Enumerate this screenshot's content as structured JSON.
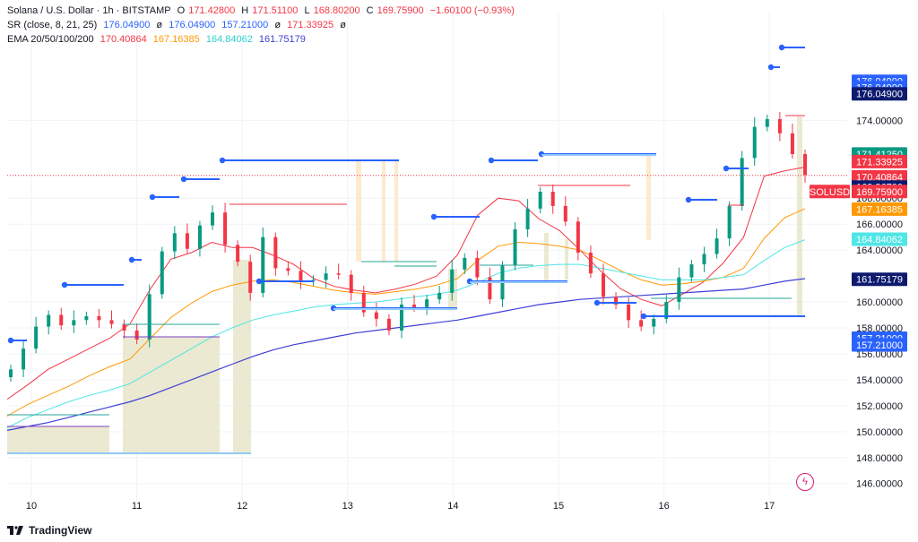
{
  "legend": {
    "symbol": "Solana / U.S. Dollar · 1h · BITSTAMP",
    "o_label": "O",
    "o": "171.42800",
    "h_label": "H",
    "h": "171.51100",
    "l_label": "L",
    "l": "168.80200",
    "c_label": "C",
    "c": "169.75900",
    "change": "−1.60100 (−0.93%)",
    "sr_label": "SR (close, 8, 21, 25)",
    "sr_values": [
      "176.04900",
      "ø",
      "176.04900",
      "157.21000",
      "ø",
      "171.33925",
      "ø"
    ],
    "ema_label": "EMA 20/50/100/200",
    "ema_values": [
      "170.40864",
      "167.16385",
      "164.84062",
      "161.75179"
    ]
  },
  "footer": {
    "brand": "TradingView"
  },
  "colors": {
    "up": "#089981",
    "down": "#f23645",
    "ema20": "#f23645",
    "ema50": "#ff9800",
    "ema100": "#4ee6e6",
    "ema200": "#3f3fd6",
    "sr_blue": "#2962ff",
    "sr_light": "#90caf9"
  },
  "chart_data": {
    "type": "line",
    "title": "Solana / U.S. Dollar · 1h · BITSTAMP",
    "x_ticks": [
      "10",
      "11",
      "12",
      "13",
      "14",
      "15",
      "16",
      "17"
    ],
    "y_ticks": [
      "146.00000",
      "148.00000",
      "150.00000",
      "152.00000",
      "154.00000",
      "156.00000",
      "158.00000",
      "160.00000",
      "164.00000",
      "166.00000",
      "168.00000",
      "174.00000"
    ],
    "ylim": [
      144.6,
      179.0
    ],
    "current_price_label": "SOLUSD",
    "price_tags": [
      {
        "value": "176.04900",
        "price": 176.049,
        "color": "#2962ff",
        "offset": -28
      },
      {
        "value": "176.04900",
        "price": 176.049,
        "color": "#2962ff",
        "offset": -14
      },
      {
        "value": "176.04900",
        "price": 176.049,
        "color": "#0d1a6e",
        "offset": 0
      },
      {
        "value": "171.41250",
        "price": 171.4125,
        "color": "#089981",
        "offset": 0
      },
      {
        "value": "171.33925",
        "price": 171.33925,
        "color": "#f23645",
        "offset": 15
      },
      {
        "value": "170.40864",
        "price": 170.40864,
        "color": "#f23645",
        "offset": 22
      },
      {
        "value": "169.86700",
        "price": 169.867,
        "color": "#0d1a6e",
        "offset": 29
      },
      {
        "value": "169.75900",
        "price": 169.759,
        "color": "#f23645",
        "offset": 36
      },
      {
        "value": "167.16385",
        "price": 167.16385,
        "color": "#ff9800",
        "offset": 0
      },
      {
        "value": "164.84062",
        "price": 164.84062,
        "color": "#4ee6e6",
        "offset": 0
      },
      {
        "value": "161.75179",
        "price": 161.75179,
        "color": "#0d1a6e",
        "offset": 0
      },
      {
        "value": "157.21000",
        "price": 157.21,
        "color": "#2962ff",
        "offset": 0
      },
      {
        "value": "157.21000",
        "price": 157.21,
        "color": "#2962ff",
        "offset": 15
      }
    ],
    "series": [
      {
        "name": "EMA 20",
        "color": "#f23645",
        "values": [
          152.5,
          153.6,
          154.8,
          155.6,
          156.4,
          157.2,
          158.3,
          161.0,
          163.3,
          163.8,
          164.6,
          164.2,
          164.2,
          163.6,
          162.9,
          161.8,
          161.2,
          160.9,
          160.7,
          161.0,
          161.4,
          162.0,
          163.6,
          166.7,
          168.0,
          167.8,
          166.4,
          165.5,
          164.0,
          162.4,
          161.0,
          160.2,
          159.7,
          160.6,
          161.5,
          163.0,
          165.0,
          169.7,
          170.1,
          170.4
        ]
      },
      {
        "name": "EMA 50",
        "color": "#ff9800",
        "values": [
          151.2,
          152.1,
          152.8,
          153.5,
          154.3,
          155.0,
          155.6,
          157.2,
          158.8,
          159.9,
          160.8,
          161.3,
          161.6,
          161.7,
          161.5,
          161.2,
          160.9,
          160.7,
          160.6,
          160.8,
          161.0,
          161.3,
          161.8,
          163.2,
          164.3,
          164.6,
          164.5,
          164.3,
          164.0,
          163.2,
          162.4,
          161.7,
          161.3,
          161.4,
          161.6,
          161.9,
          162.6,
          164.9,
          166.5,
          167.2
        ]
      },
      {
        "name": "EMA 100",
        "color": "#4ee6e6",
        "values": [
          150.3,
          151.1,
          151.7,
          152.3,
          152.8,
          153.2,
          153.7,
          154.6,
          155.5,
          156.4,
          157.3,
          158.0,
          158.6,
          159.0,
          159.3,
          159.6,
          159.8,
          159.9,
          160.0,
          160.2,
          160.4,
          160.6,
          160.9,
          161.5,
          162.2,
          162.6,
          162.8,
          162.9,
          162.9,
          162.6,
          162.3,
          162.0,
          161.7,
          161.7,
          161.7,
          161.9,
          162.1,
          163.2,
          164.2,
          164.8
        ]
      },
      {
        "name": "EMA 200",
        "color": "#3f3fd6",
        "values": [
          150.1,
          150.4,
          150.7,
          151.1,
          151.5,
          151.9,
          152.3,
          152.8,
          153.4,
          154.0,
          154.6,
          155.2,
          155.8,
          156.3,
          156.7,
          157.0,
          157.3,
          157.6,
          157.8,
          158.0,
          158.2,
          158.4,
          158.6,
          158.9,
          159.2,
          159.5,
          159.8,
          160.0,
          160.2,
          160.3,
          160.4,
          160.5,
          160.6,
          160.7,
          160.8,
          160.9,
          161.0,
          161.3,
          161.6,
          161.8
        ]
      }
    ],
    "candle_closes": [
      154.8,
      156.4,
      158.1,
      159.0,
      158.2,
      158.6,
      158.9,
      158.6,
      158.3,
      157.8,
      157.1,
      160.6,
      163.9,
      165.3,
      164.1,
      165.9,
      166.9,
      164.4,
      163.1,
      160.7,
      165.0,
      162.6,
      162.4,
      161.6,
      161.7,
      162.2,
      162.1,
      160.7,
      159.2,
      158.7,
      157.8,
      159.8,
      159.6,
      160.2,
      160.7,
      162.5,
      163.4,
      161.9,
      160.2,
      162.8,
      165.6,
      167.2,
      168.5,
      167.4,
      166.2,
      163.8,
      162.2,
      160.4,
      159.8,
      158.6,
      158.1,
      158.7,
      160.0,
      161.9,
      162.9,
      163.7,
      164.9,
      167.4,
      171.1,
      173.5,
      174.1,
      173.0,
      171.4,
      169.8
    ]
  }
}
